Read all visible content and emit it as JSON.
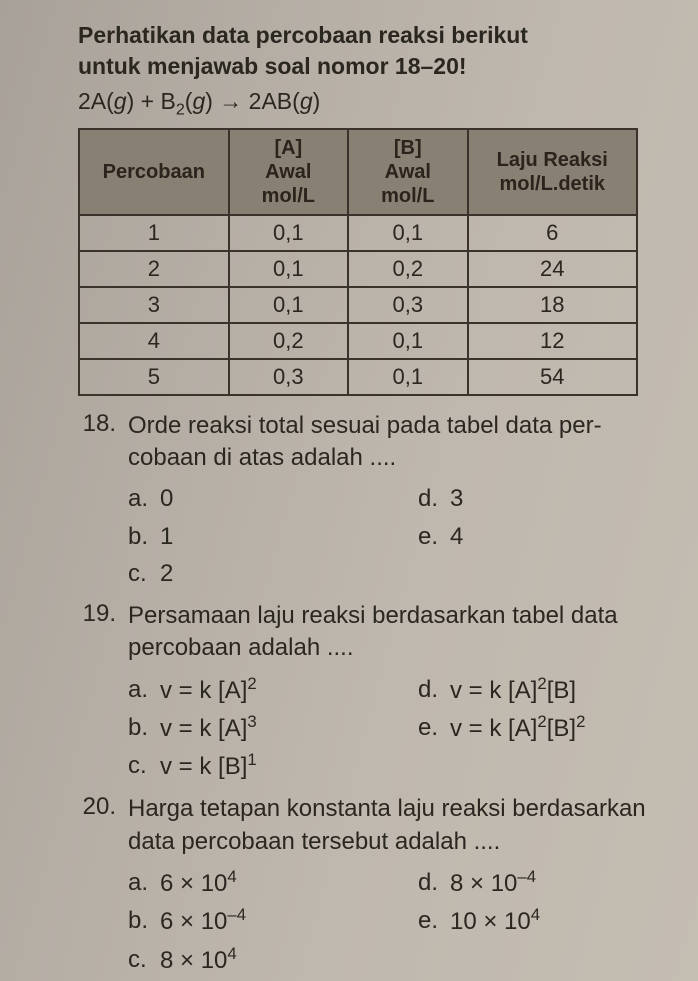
{
  "intro_line1": "Perhatikan data percobaan reaksi berikut",
  "intro_line2": "untuk menjawab soal nomor 18–20!",
  "equation_html": "2A(<span class='ital'>g</span>) + B<span class='sub'>2</span>(<span class='ital'>g</span>) → 2AB(<span class='ital'>g</span>)",
  "table": {
    "headers": {
      "c1": "Percobaan",
      "c2": "[A]<br>Awal<br>mol/L",
      "c3": "[B]<br>Awal<br>mol/L",
      "c4": "Laju Reaksi<br>mol/L.detik"
    },
    "rows": [
      [
        "1",
        "0,1",
        "0,1",
        "6"
      ],
      [
        "2",
        "0,1",
        "0,2",
        "24"
      ],
      [
        "3",
        "0,1",
        "0,3",
        "18"
      ],
      [
        "4",
        "0,2",
        "0,1",
        "12"
      ],
      [
        "5",
        "0,3",
        "0,1",
        "54"
      ]
    ],
    "col_widths": [
      "150px",
      "120px",
      "120px",
      "170px"
    ],
    "header_bg": "#898074",
    "border_color": "#3a332b"
  },
  "questions": [
    {
      "num": "18.",
      "text": "Orde reaksi total sesuai pada tabel data per­cobaan di atas adalah ....",
      "options_left": [
        [
          "a.",
          "0"
        ],
        [
          "b.",
          "1"
        ],
        [
          "c.",
          "2"
        ]
      ],
      "options_right": [
        [
          "d.",
          "3"
        ],
        [
          "e.",
          "4"
        ]
      ]
    },
    {
      "num": "19.",
      "text": "Persamaan laju reaksi berdasarkan tabel data percobaan adalah ....",
      "options_left": [
        [
          "a.",
          "v = k [A]<span class='sup'>2</span>"
        ],
        [
          "b.",
          "v = k [A]<span class='sup'>3</span>"
        ],
        [
          "c.",
          "v = k [B]<span class='sup'>1</span>"
        ]
      ],
      "options_right": [
        [
          "d.",
          "v = k [A]<span class='sup'>2</span>[B]"
        ],
        [
          "e.",
          "v = k [A]<span class='sup'>2</span>[B]<span class='sup'>2</span>"
        ]
      ]
    },
    {
      "num": "20.",
      "text": "Harga tetapan konstanta laju reaksi berdasar­kan data percobaan tersebut adalah ....",
      "options_left": [
        [
          "a.",
          "6 × 10<span class='sup'>4</span>"
        ],
        [
          "b.",
          "6 × 10<span class='sup'>–4</span>"
        ],
        [
          "c.",
          "8 × 10<span class='sup'>4</span>"
        ]
      ],
      "options_right": [
        [
          "d.",
          "8 × 10<span class='sup'>–4</span>"
        ],
        [
          "e.",
          "10 × 10<span class='sup'>4</span>"
        ]
      ]
    }
  ],
  "style": {
    "page_bg": "linear-gradient(105deg, #a8a199 0%, #b5aea5 30%, #bfb8ae 60%, #c4bdb2 100%)",
    "text_color": "#2a2620",
    "font_family": "Arial, Helvetica, sans-serif",
    "intro_fontsize": 23,
    "body_fontsize": 24
  }
}
